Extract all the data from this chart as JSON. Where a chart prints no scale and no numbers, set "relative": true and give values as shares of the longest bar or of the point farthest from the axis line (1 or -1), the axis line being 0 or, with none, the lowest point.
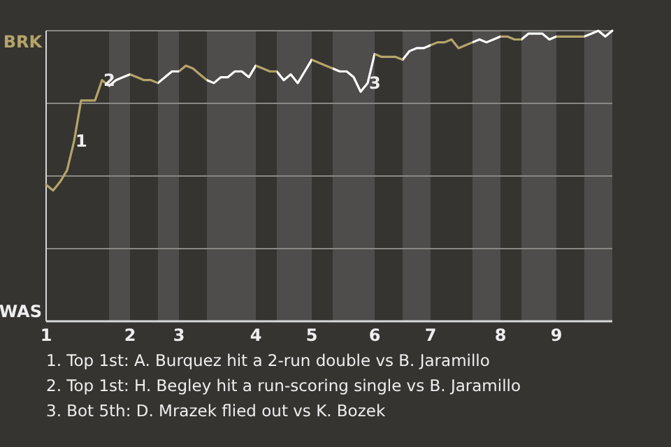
{
  "chart_data": {
    "type": "line",
    "relative": true,
    "marker": "none",
    "line_style": "solid",
    "grid": "y",
    "categories": [
      "1",
      null,
      null,
      null,
      null,
      null,
      null,
      null,
      null,
      null,
      null,
      null,
      "2",
      null,
      null,
      null,
      null,
      null,
      null,
      "3",
      null,
      null,
      null,
      null,
      null,
      null,
      null,
      null,
      null,
      null,
      "4",
      null,
      null,
      null,
      null,
      null,
      null,
      null,
      "5",
      null,
      null,
      null,
      null,
      null,
      null,
      null,
      null,
      "6",
      null,
      null,
      null,
      null,
      null,
      null,
      null,
      "7",
      null,
      null,
      null,
      null,
      null,
      null,
      null,
      null,
      null,
      "8",
      null,
      null,
      null,
      null,
      null,
      null,
      null,
      "9",
      null,
      null,
      null,
      null,
      null,
      null,
      null,
      null
    ],
    "series": [
      {
        "values": [
          0.47,
          0.45,
          0.48,
          0.52,
          0.62,
          0.76,
          0.76,
          0.76,
          0.83,
          0.81,
          0.83,
          0.84,
          0.85,
          0.84,
          0.83,
          0.83,
          0.82,
          0.84,
          0.86,
          0.86,
          0.88,
          0.87,
          0.85,
          0.83,
          0.82,
          0.84,
          0.84,
          0.86,
          0.86,
          0.84,
          0.88,
          0.87,
          0.86,
          0.86,
          0.83,
          0.85,
          0.82,
          0.86,
          0.9,
          0.89,
          0.88,
          0.87,
          0.86,
          0.86,
          0.84,
          0.79,
          0.82,
          0.92,
          0.91,
          0.91,
          0.91,
          0.9,
          0.93,
          0.94,
          0.94,
          0.95,
          0.96,
          0.96,
          0.97,
          0.94,
          0.95,
          0.96,
          0.97,
          0.96,
          0.97,
          0.98,
          0.98,
          0.97,
          0.97,
          0.99,
          0.99,
          0.99,
          0.97,
          0.98,
          0.98,
          0.98,
          0.98,
          0.98,
          0.99,
          1,
          0.98,
          1
        ],
        "colors": [
          "#b5a46a",
          "#b5a46a",
          "#b5a46a",
          "#b5a46a",
          "#b5a46a",
          "#b5a46a",
          "#b5a46a",
          "#b5a46a",
          "#b5a46a",
          "#ffffff",
          "#ffffff",
          "#ffffff",
          "#b5a46a",
          "#b5a46a",
          "#b5a46a",
          "#b5a46a",
          "#ffffff",
          "#ffffff",
          "#ffffff",
          "#b5a46a",
          "#b5a46a",
          "#b5a46a",
          "#b5a46a",
          "#ffffff",
          "#ffffff",
          "#ffffff",
          "#ffffff",
          "#ffffff",
          "#ffffff",
          "#ffffff",
          "#b5a46a",
          "#b5a46a",
          "#b5a46a",
          "#ffffff",
          "#ffffff",
          "#ffffff",
          "#ffffff",
          "#ffffff",
          "#b5a46a",
          "#b5a46a",
          "#b5a46a",
          "#ffffff",
          "#ffffff",
          "#ffffff",
          "#ffffff",
          "#ffffff",
          "#ffffff",
          "#b5a46a",
          "#b5a46a",
          "#b5a46a",
          "#b5a46a",
          "#ffffff",
          "#ffffff",
          "#ffffff",
          "#ffffff",
          "#b5a46a",
          "#b5a46a",
          "#b5a46a",
          "#b5a46a",
          "#b5a46a",
          "#b5a46a",
          "#ffffff",
          "#ffffff",
          "#ffffff",
          "#ffffff",
          "#b5a46a",
          "#b5a46a",
          "#b5a46a",
          "#ffffff",
          "#ffffff",
          "#ffffff",
          "#ffffff",
          "#ffffff",
          "#b5a46a",
          "#b5a46a",
          "#b5a46a",
          "#b5a46a",
          "#ffffff",
          "#ffffff",
          "#ffffff",
          "#ffffff",
          "#ffffff"
        ]
      }
    ],
    "annotations": [
      "BRK",
      "WAS",
      {
        "text": "1",
        "y": 0.62
      },
      {
        "text": "2",
        "y": 0.83
      },
      {
        "text": "3",
        "y": 0.82
      },
      "1. Top 1st: A. Burquez hit a 2-run double vs B. Jaramillo",
      "2. Top 1st: H. Begley hit a run-scoring single vs B. Jaramillo",
      "3. Bot 5th: D. Mrazek flied out vs K. Bozek"
    ]
  }
}
